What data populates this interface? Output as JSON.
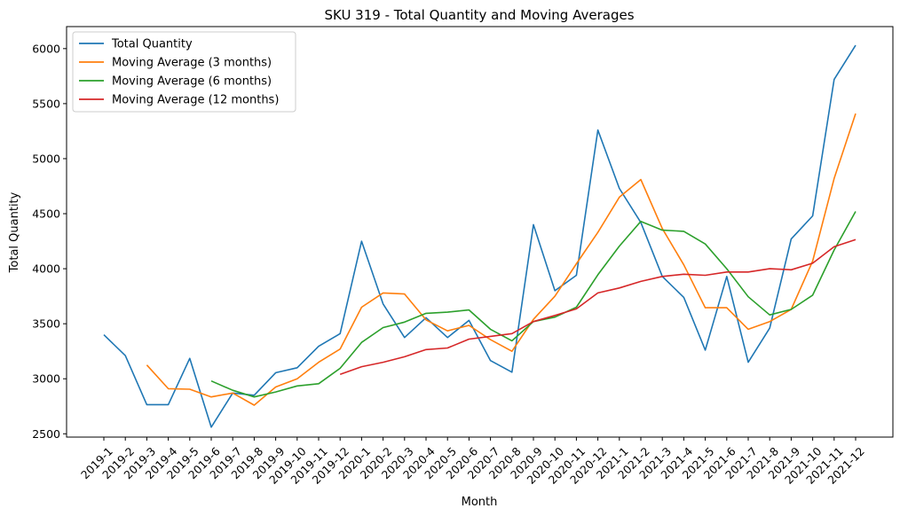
{
  "chart_data": {
    "type": "line",
    "title": "SKU 319 - Total Quantity and Moving Averages",
    "xlabel": "Month",
    "ylabel": "Total Quantity",
    "ylim": [
      2470,
      6200
    ],
    "yticks": [
      2500,
      3000,
      3500,
      4000,
      4500,
      5000,
      5500,
      6000
    ],
    "grid": false,
    "legend_position": "top-left",
    "categories": [
      "2019-1",
      "2019-2",
      "2019-3",
      "2019-4",
      "2019-5",
      "2019-6",
      "2019-7",
      "2019-8",
      "2019-9",
      "2019-10",
      "2019-11",
      "2019-12",
      "2020-1",
      "2020-2",
      "2020-3",
      "2020-4",
      "2020-5",
      "2020-6",
      "2020-7",
      "2020-8",
      "2020-9",
      "2020-10",
      "2020-11",
      "2020-12",
      "2021-1",
      "2021-2",
      "2021-3",
      "2021-4",
      "2021-5",
      "2021-6",
      "2021-7",
      "2021-8",
      "2021-9",
      "2021-10",
      "2021-11",
      "2021-12"
    ],
    "series": [
      {
        "name": "Total Quantity",
        "color": "#1f77b4",
        "values": [
          3400,
          3210,
          2765,
          2765,
          3185,
          2560,
          2870,
          2850,
          3055,
          3100,
          3295,
          3410,
          4250,
          3680,
          3375,
          3555,
          3375,
          3530,
          3165,
          3060,
          4400,
          3800,
          3940,
          5260,
          4730,
          4420,
          3930,
          3740,
          3260,
          3930,
          3150,
          3460,
          4270,
          4480,
          5720,
          6030
        ]
      },
      {
        "name": "Moving Average (3 months)",
        "color": "#ff7f0e",
        "values": [
          null,
          null,
          3125,
          2910,
          2905,
          2835,
          2870,
          2760,
          2925,
          3000,
          3150,
          3270,
          3650,
          3780,
          3770,
          3535,
          3435,
          3485,
          3355,
          3250,
          3540,
          3750,
          4045,
          4330,
          4650,
          4810,
          4365,
          4035,
          3645,
          3645,
          3450,
          3520,
          3630,
          4070,
          4820,
          5410
        ]
      },
      {
        "name": "Moving Average (6 months)",
        "color": "#2ca02c",
        "values": [
          null,
          null,
          null,
          null,
          null,
          2980,
          2895,
          2835,
          2880,
          2935,
          2955,
          3095,
          3330,
          3465,
          3515,
          3595,
          3605,
          3625,
          3450,
          3345,
          3520,
          3560,
          3650,
          3945,
          4205,
          4430,
          4350,
          4340,
          4225,
          4000,
          3745,
          3580,
          3630,
          3760,
          4170,
          4520
        ]
      },
      {
        "name": "Moving Average (12 months)",
        "color": "#d62728",
        "values": [
          null,
          null,
          null,
          null,
          null,
          null,
          null,
          null,
          null,
          null,
          null,
          3040,
          3110,
          3150,
          3200,
          3265,
          3280,
          3360,
          3385,
          3410,
          3520,
          3575,
          3635,
          3780,
          3825,
          3885,
          3930,
          3950,
          3940,
          3970,
          3970,
          4000,
          3990,
          4050,
          4200,
          4265
        ]
      }
    ]
  }
}
